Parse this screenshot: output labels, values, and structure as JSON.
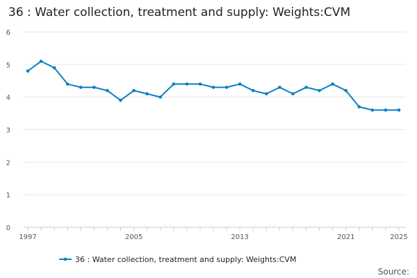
{
  "chart_data": {
    "type": "line",
    "title": "36 : Water collection, treatment and supply: Weights:CVM",
    "xlabel": "",
    "ylabel": "",
    "ylim": [
      0,
      6
    ],
    "yticks": [
      0,
      1,
      2,
      3,
      4,
      5,
      6
    ],
    "xlim": [
      1997,
      2025
    ],
    "xticks": [
      1997,
      2005,
      2013,
      2021,
      2025
    ],
    "grid": true,
    "legend_position": "bottom",
    "series": [
      {
        "name": "36 : Water collection, treatment and supply: Weights:CVM",
        "color": "#0a7fc0",
        "x": [
          1997,
          1998,
          1999,
          2000,
          2001,
          2002,
          2003,
          2004,
          2005,
          2006,
          2007,
          2008,
          2009,
          2010,
          2011,
          2012,
          2013,
          2014,
          2015,
          2016,
          2017,
          2018,
          2019,
          2020,
          2021,
          2022,
          2023,
          2024,
          2025
        ],
        "values": [
          4.8,
          5.1,
          4.9,
          4.4,
          4.3,
          4.3,
          4.2,
          3.9,
          4.2,
          4.1,
          4.0,
          4.4,
          4.4,
          4.4,
          4.3,
          4.3,
          4.4,
          4.2,
          4.1,
          4.3,
          4.1,
          4.3,
          4.2,
          4.4,
          4.2,
          3.7,
          3.6,
          3.6,
          3.6
        ]
      }
    ],
    "source_label": "Source:"
  },
  "colors": {
    "grid": "#e6e6e6",
    "axis": "#cccccc"
  }
}
